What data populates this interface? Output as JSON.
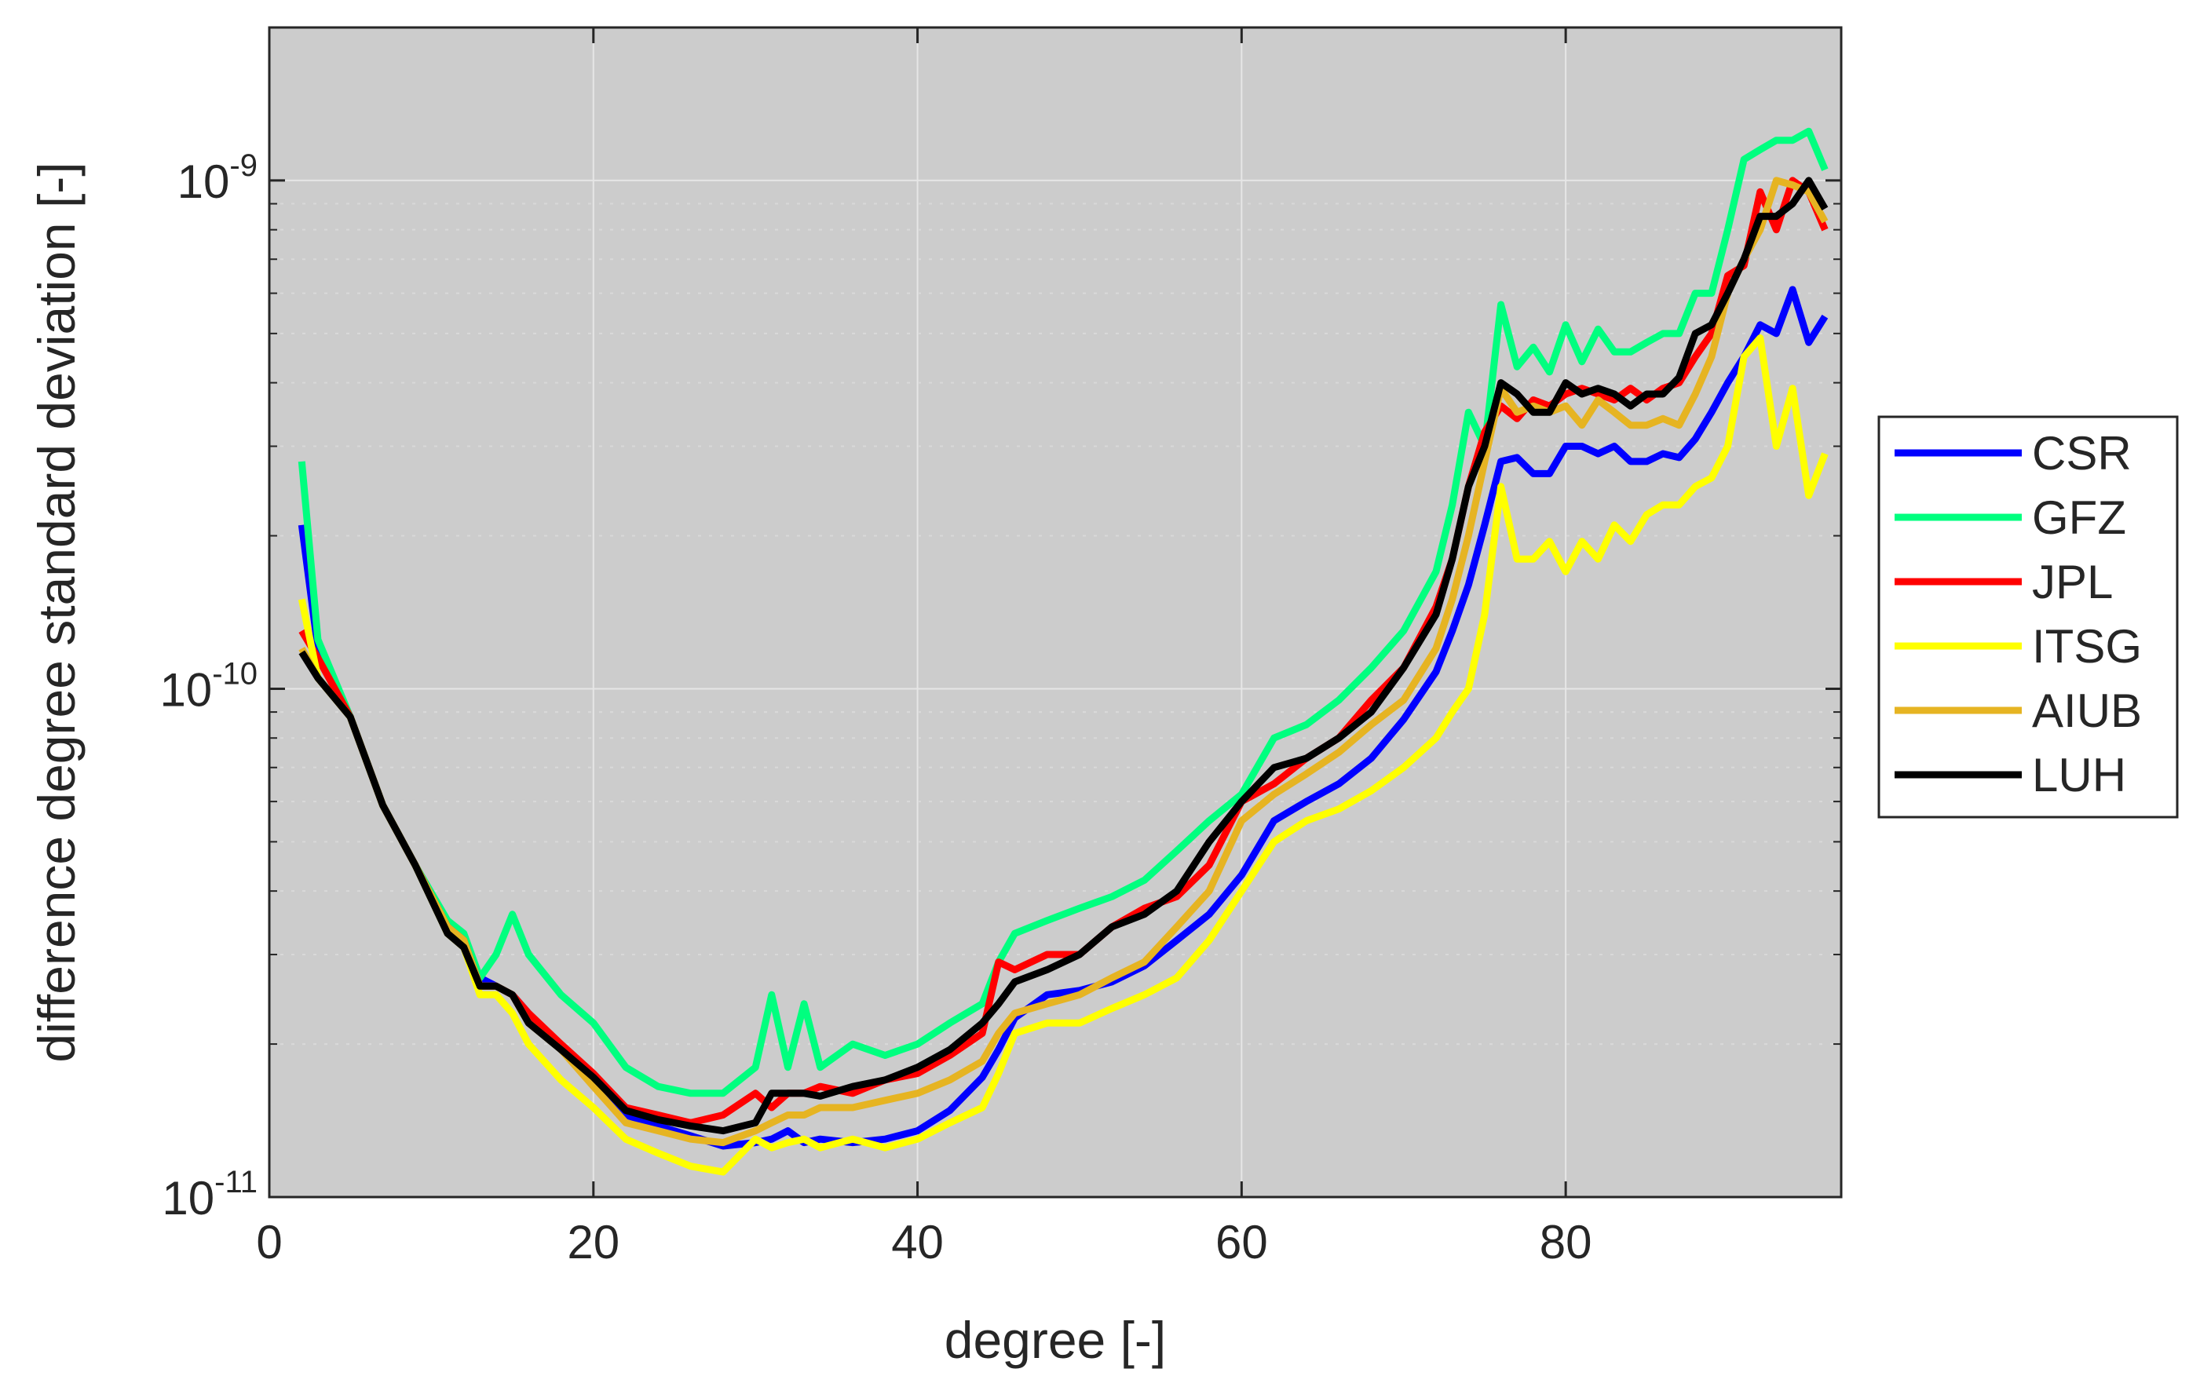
{
  "chart_data": {
    "type": "line",
    "title": "",
    "xlabel": "degree [-]",
    "ylabel": "difference degree standard deviation [-]",
    "xlim": [
      0,
      97
    ],
    "ylim": [
      1e-11,
      2e-09
    ],
    "yscale": "log",
    "xticks": [
      0,
      20,
      40,
      60,
      80
    ],
    "xtick_labels": [
      "0",
      "20",
      "40",
      "60",
      "80"
    ],
    "yticks": [
      {
        "value": 1e-11,
        "base": "10",
        "exponent": "-11"
      },
      {
        "value": 1e-10,
        "base": "10",
        "exponent": "-10"
      },
      {
        "value": 1e-09,
        "base": "10",
        "exponent": "-9"
      }
    ],
    "grid": true,
    "background": "#cccccc",
    "legend_position": "outside-right",
    "x": [
      2,
      3,
      5,
      7,
      9,
      11,
      12,
      13,
      14,
      15,
      16,
      18,
      20,
      22,
      24,
      26,
      28,
      30,
      31,
      32,
      33,
      34,
      36,
      38,
      40,
      42,
      44,
      45,
      46,
      48,
      50,
      52,
      54,
      56,
      58,
      60,
      62,
      64,
      66,
      68,
      70,
      72,
      73,
      74,
      75,
      76,
      77,
      78,
      79,
      80,
      81,
      82,
      83,
      84,
      85,
      86,
      87,
      88,
      89,
      90,
      91,
      92,
      93,
      94,
      95,
      96
    ],
    "series": [
      {
        "name": "CSR",
        "color": "#0000ff",
        "values": [
          2.1e-10,
          1.2e-10,
          8.8e-11,
          5.9e-11,
          4.5e-11,
          3.4e-11,
          3.2e-11,
          2.7e-11,
          2.6e-11,
          2.5e-11,
          2.3e-11,
          1.95e-11,
          1.7e-11,
          1.45e-11,
          1.38e-11,
          1.32e-11,
          1.26e-11,
          1.28e-11,
          1.3e-11,
          1.35e-11,
          1.28e-11,
          1.3e-11,
          1.28e-11,
          1.3e-11,
          1.35e-11,
          1.48e-11,
          1.72e-11,
          1.95e-11,
          2.25e-11,
          2.5e-11,
          2.55e-11,
          2.65e-11,
          2.85e-11,
          3.2e-11,
          3.6e-11,
          4.3e-11,
          5.5e-11,
          6e-11,
          6.5e-11,
          7.3e-11,
          8.7e-11,
          1.08e-10,
          1.3e-10,
          1.6e-10,
          2.1e-10,
          2.8e-10,
          2.85e-10,
          2.65e-10,
          2.65e-10,
          3e-10,
          3e-10,
          2.9e-10,
          3e-10,
          2.8e-10,
          2.8e-10,
          2.9e-10,
          2.85e-10,
          3.1e-10,
          3.5e-10,
          4e-10,
          4.5e-10,
          5.2e-10,
          5e-10,
          6.1e-10,
          4.8e-10,
          5.4e-10
        ]
      },
      {
        "name": "GFZ",
        "color": "#00ff7f",
        "values": [
          2.8e-10,
          1.25e-10,
          8.8e-11,
          5.9e-11,
          4.5e-11,
          3.5e-11,
          3.3e-11,
          2.7e-11,
          3e-11,
          3.6e-11,
          3e-11,
          2.5e-11,
          2.2e-11,
          1.8e-11,
          1.65e-11,
          1.6e-11,
          1.6e-11,
          1.8e-11,
          2.5e-11,
          1.8e-11,
          2.4e-11,
          1.8e-11,
          2e-11,
          1.9e-11,
          2e-11,
          2.2e-11,
          2.4e-11,
          2.9e-11,
          3.3e-11,
          3.5e-11,
          3.7e-11,
          3.9e-11,
          4.2e-11,
          4.8e-11,
          5.5e-11,
          6.2e-11,
          8e-11,
          8.5e-11,
          9.5e-11,
          1.1e-10,
          1.3e-10,
          1.7e-10,
          2.3e-10,
          3.5e-10,
          3e-10,
          5.7e-10,
          4.3e-10,
          4.7e-10,
          4.2e-10,
          5.2e-10,
          4.4e-10,
          5.1e-10,
          4.6e-10,
          4.6e-10,
          4.8e-10,
          5e-10,
          5e-10,
          6e-10,
          6e-10,
          8e-10,
          1.1e-09,
          1.15e-09,
          1.2e-09,
          1.2e-09,
          1.25e-09,
          1.05e-09
        ]
      },
      {
        "name": "JPL",
        "color": "#ff0000",
        "values": [
          1.3e-10,
          1.15e-10,
          8.8e-11,
          5.9e-11,
          4.5e-11,
          3.4e-11,
          3.2e-11,
          2.6e-11,
          2.6e-11,
          2.5e-11,
          2.3e-11,
          2e-11,
          1.75e-11,
          1.5e-11,
          1.45e-11,
          1.4e-11,
          1.45e-11,
          1.6e-11,
          1.5e-11,
          1.6e-11,
          1.6e-11,
          1.65e-11,
          1.6e-11,
          1.7e-11,
          1.75e-11,
          1.9e-11,
          2.1e-11,
          2.9e-11,
          2.8e-11,
          3e-11,
          3e-11,
          3.4e-11,
          3.7e-11,
          3.9e-11,
          4.5e-11,
          6e-11,
          6.5e-11,
          7.3e-11,
          8e-11,
          9.5e-11,
          1.1e-10,
          1.45e-10,
          1.8e-10,
          2.5e-10,
          3.2e-10,
          3.6e-10,
          3.4e-10,
          3.7e-10,
          3.6e-10,
          3.8e-10,
          3.9e-10,
          3.8e-10,
          3.7e-10,
          3.9e-10,
          3.7e-10,
          3.9e-10,
          4e-10,
          4.5e-10,
          5e-10,
          6.5e-10,
          6.8e-10,
          9.5e-10,
          8e-10,
          1e-09,
          9.5e-10,
          8e-10
        ]
      },
      {
        "name": "ITSG",
        "color": "#ffff00",
        "values": [
          1.5e-10,
          1.05e-10,
          8.8e-11,
          5.9e-11,
          4.5e-11,
          3.3e-11,
          3.1e-11,
          2.5e-11,
          2.5e-11,
          2.3e-11,
          2e-11,
          1.7e-11,
          1.5e-11,
          1.3e-11,
          1.22e-11,
          1.15e-11,
          1.12e-11,
          1.3e-11,
          1.25e-11,
          1.28e-11,
          1.3e-11,
          1.25e-11,
          1.3e-11,
          1.25e-11,
          1.3e-11,
          1.4e-11,
          1.5e-11,
          1.75e-11,
          2.1e-11,
          2.2e-11,
          2.2e-11,
          2.35e-11,
          2.5e-11,
          2.7e-11,
          3.2e-11,
          4e-11,
          5e-11,
          5.5e-11,
          5.8e-11,
          6.3e-11,
          7e-11,
          8e-11,
          9e-11,
          1e-10,
          1.4e-10,
          2.5e-10,
          1.8e-10,
          1.8e-10,
          1.95e-10,
          1.7e-10,
          1.95e-10,
          1.8e-10,
          2.1e-10,
          1.95e-10,
          2.2e-10,
          2.3e-10,
          2.3e-10,
          2.5e-10,
          2.6e-10,
          3e-10,
          4.5e-10,
          4.9e-10,
          3e-10,
          3.9e-10,
          2.4e-10,
          2.9e-10
        ]
      },
      {
        "name": "AIUB",
        "color": "#e6b422",
        "values": [
          1.2e-10,
          1.05e-10,
          8.8e-11,
          5.9e-11,
          4.5e-11,
          3.4e-11,
          3.2e-11,
          2.6e-11,
          2.6e-11,
          2.5e-11,
          2.2e-11,
          1.95e-11,
          1.65e-11,
          1.4e-11,
          1.35e-11,
          1.3e-11,
          1.28e-11,
          1.35e-11,
          1.4e-11,
          1.45e-11,
          1.45e-11,
          1.5e-11,
          1.5e-11,
          1.55e-11,
          1.6e-11,
          1.7e-11,
          1.85e-11,
          2.1e-11,
          2.3e-11,
          2.4e-11,
          2.5e-11,
          2.7e-11,
          2.9e-11,
          3.4e-11,
          4e-11,
          5.5e-11,
          6.2e-11,
          6.8e-11,
          7.5e-11,
          8.5e-11,
          9.5e-11,
          1.2e-10,
          1.5e-10,
          2e-10,
          2.8e-10,
          3.9e-10,
          3.5e-10,
          3.6e-10,
          3.5e-10,
          3.6e-10,
          3.3e-10,
          3.7e-10,
          3.5e-10,
          3.3e-10,
          3.3e-10,
          3.4e-10,
          3.3e-10,
          3.8e-10,
          4.5e-10,
          6e-10,
          7e-10,
          8e-10,
          1e-09,
          9.8e-10,
          9.5e-10,
          8.3e-10
        ]
      },
      {
        "name": "LUH",
        "color": "#000000",
        "values": [
          1.18e-10,
          1.05e-10,
          8.8e-11,
          5.9e-11,
          4.5e-11,
          3.3e-11,
          3.1e-11,
          2.6e-11,
          2.6e-11,
          2.5e-11,
          2.2e-11,
          1.95e-11,
          1.72e-11,
          1.48e-11,
          1.42e-11,
          1.38e-11,
          1.35e-11,
          1.4e-11,
          1.6e-11,
          1.6e-11,
          1.6e-11,
          1.58e-11,
          1.65e-11,
          1.7e-11,
          1.8e-11,
          1.95e-11,
          2.2e-11,
          2.4e-11,
          2.65e-11,
          2.8e-11,
          3e-11,
          3.4e-11,
          3.6e-11,
          4e-11,
          5e-11,
          6e-11,
          7e-11,
          7.3e-11,
          8e-11,
          9e-11,
          1.1e-10,
          1.4e-10,
          1.8e-10,
          2.5e-10,
          3e-10,
          4e-10,
          3.8e-10,
          3.5e-10,
          3.5e-10,
          4e-10,
          3.8e-10,
          3.9e-10,
          3.8e-10,
          3.6e-10,
          3.8e-10,
          3.8e-10,
          4.1e-10,
          5e-10,
          5.2e-10,
          6e-10,
          7e-10,
          8.5e-10,
          8.5e-10,
          9e-10,
          1e-09,
          8.8e-10
        ]
      }
    ]
  }
}
